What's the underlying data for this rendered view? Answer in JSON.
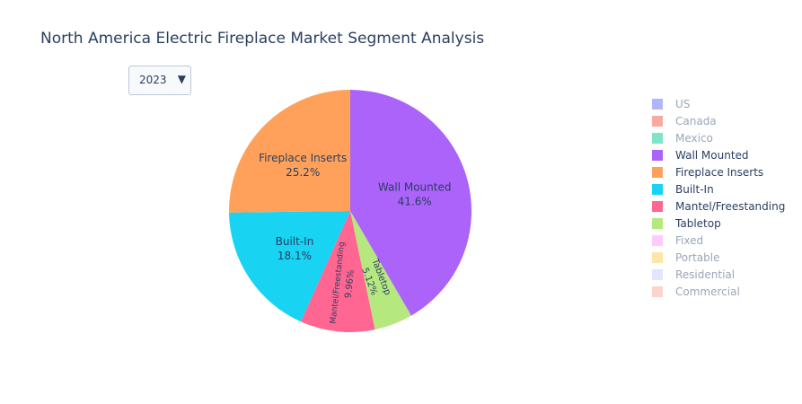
{
  "chart_data": {
    "type": "pie",
    "title": "North America Electric Fireplace Market Segment Analysis",
    "selector": {
      "selected": "2023"
    },
    "slices": [
      {
        "label": "Wall Mounted",
        "percent": 41.6,
        "percent_text": "41.6%",
        "color": "#ab63fa"
      },
      {
        "label": "Tabletop",
        "percent": 5.12,
        "percent_text": "5.12%",
        "color": "#b6e880"
      },
      {
        "label": "Mantel/Freestanding",
        "percent": 9.96,
        "percent_text": "9.96%",
        "color": "#ff6692"
      },
      {
        "label": "Built-In",
        "percent": 18.1,
        "percent_text": "18.1%",
        "color": "#19d3f3"
      },
      {
        "label": "Fireplace Inserts",
        "percent": 25.2,
        "percent_text": "25.2%",
        "color": "#ffa15a"
      }
    ],
    "legend": {
      "placement": "right",
      "items": [
        {
          "label": "US",
          "color": "#636efa",
          "visible": false
        },
        {
          "label": "Canada",
          "color": "#ef553b",
          "visible": false
        },
        {
          "label": "Mexico",
          "color": "#00cc96",
          "visible": false
        },
        {
          "label": "Wall Mounted",
          "color": "#ab63fa",
          "visible": true
        },
        {
          "label": "Fireplace Inserts",
          "color": "#ffa15a",
          "visible": true
        },
        {
          "label": "Built-In",
          "color": "#19d3f3",
          "visible": true
        },
        {
          "label": "Mantel/Freestanding",
          "color": "#ff6692",
          "visible": true
        },
        {
          "label": "Tabletop",
          "color": "#b6e880",
          "visible": true
        },
        {
          "label": "Fixed",
          "color": "#ff97ff",
          "visible": false
        },
        {
          "label": "Portable",
          "color": "#fecb52",
          "visible": false
        },
        {
          "label": "Residential",
          "color": "#c6cbfb",
          "visible": false
        },
        {
          "label": "Commercial",
          "color": "#f7aa9b",
          "visible": false
        }
      ]
    }
  }
}
